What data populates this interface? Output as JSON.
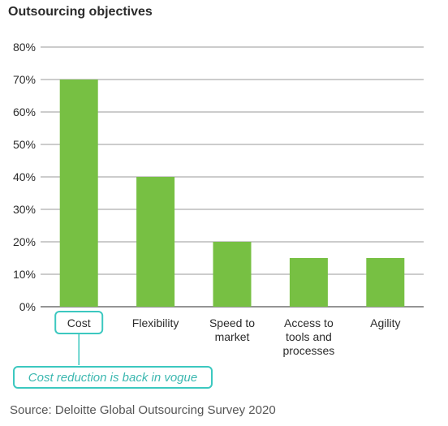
{
  "chart_data": {
    "type": "bar",
    "title": "Outsourcing objectives",
    "categories": [
      "Cost",
      "Flexibility",
      "Speed to\nmarket",
      "Access to\ntools and\nprocesses",
      "Agility"
    ],
    "values": [
      70,
      40,
      20,
      15,
      15
    ],
    "ylim": [
      0,
      80
    ],
    "yticks": [
      "0%",
      "10%",
      "20%",
      "30%",
      "40%",
      "50%",
      "60%",
      "70%",
      "80%"
    ],
    "grid": true,
    "bar_color": "#77c043",
    "annotation": {
      "text": "Cost reduction is back in vogue",
      "target_category": "Cost",
      "color": "#3cc8c0"
    },
    "source": "Source: Deloitte Global Outsourcing Survey 2020"
  }
}
